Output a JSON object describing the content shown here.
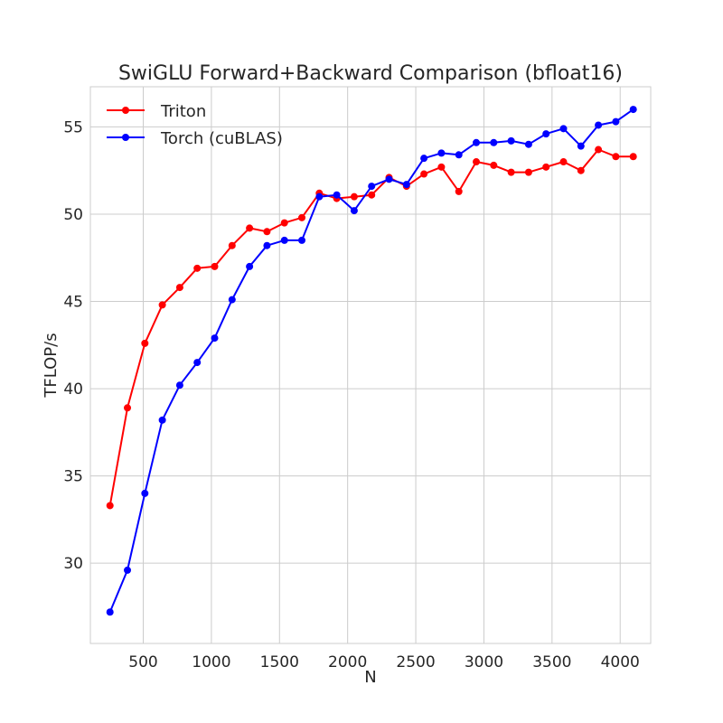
{
  "chart_data": {
    "type": "line",
    "title": "SwiGLU Forward+Backward Comparison (bfloat16)",
    "xlabel": "N",
    "ylabel": "TFLOP/s",
    "xlim": [
      112,
      4224
    ],
    "ylim": [
      25.4,
      57.3
    ],
    "xticks": [
      500,
      1000,
      1500,
      2000,
      2500,
      3000,
      3500,
      4000
    ],
    "yticks": [
      30,
      35,
      40,
      45,
      50,
      55
    ],
    "grid": true,
    "legend_position": "top-left",
    "x": [
      256,
      384,
      512,
      640,
      768,
      896,
      1024,
      1152,
      1280,
      1408,
      1536,
      1664,
      1792,
      1920,
      2048,
      2176,
      2304,
      2432,
      2560,
      2688,
      2816,
      2944,
      3072,
      3200,
      3328,
      3456,
      3584,
      3712,
      3840,
      3968,
      4096
    ],
    "series": [
      {
        "name": "Triton",
        "color": "#ff0000",
        "values": [
          33.3,
          38.9,
          42.6,
          44.8,
          45.8,
          46.9,
          47.0,
          48.2,
          49.2,
          49.0,
          49.5,
          49.8,
          51.2,
          50.9,
          51.0,
          51.1,
          52.1,
          51.6,
          52.3,
          52.7,
          51.3,
          53.0,
          52.8,
          52.4,
          52.4,
          52.7,
          53.0,
          52.5,
          53.7,
          53.3,
          53.3
        ]
      },
      {
        "name": "Torch (cuBLAS)",
        "color": "#0000ff",
        "values": [
          27.2,
          29.6,
          34.0,
          38.2,
          40.2,
          41.5,
          42.9,
          45.1,
          47.0,
          48.2,
          48.5,
          48.5,
          51.0,
          51.1,
          50.2,
          51.6,
          52.0,
          51.7,
          53.2,
          53.5,
          53.4,
          54.1,
          54.1,
          54.2,
          54.0,
          54.6,
          54.9,
          53.9,
          55.1,
          55.3,
          56.0
        ]
      }
    ]
  }
}
